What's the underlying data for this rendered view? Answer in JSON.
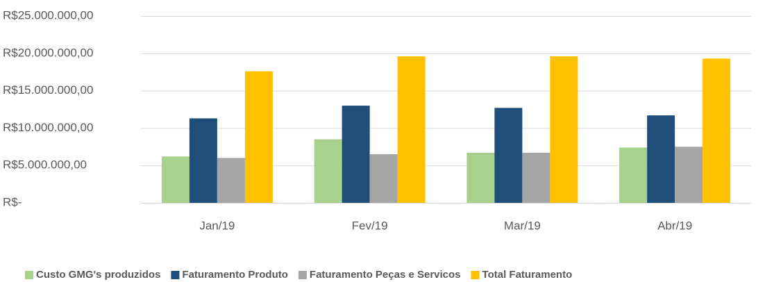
{
  "chart_data": {
    "type": "bar",
    "categories": [
      "Jan/19",
      "Fev/19",
      "Mar/19",
      "Abr/19"
    ],
    "series": [
      {
        "name": "Custo GMG's produzidos",
        "color": "#a9d18e",
        "values": [
          6200000,
          8500000,
          6700000,
          7400000
        ]
      },
      {
        "name": "Faturamento Produto",
        "color": "#1f4e79",
        "values": [
          11300000,
          13000000,
          12700000,
          11700000
        ]
      },
      {
        "name": "Faturamento Peças e Servicos",
        "color": "#a5a5a5",
        "values": [
          6000000,
          6500000,
          6700000,
          7500000
        ]
      },
      {
        "name": "Total Faturamento",
        "color": "#ffc000",
        "values": [
          17600000,
          19600000,
          19600000,
          19300000
        ]
      }
    ],
    "ylim": [
      0,
      25000000
    ],
    "yticks": [
      {
        "value": 0,
        "label": "R$-"
      },
      {
        "value": 5000000,
        "label": "R$5.000.000,00"
      },
      {
        "value": 10000000,
        "label": "R$10.000.000,00"
      },
      {
        "value": 15000000,
        "label": "R$15.000.000,00"
      },
      {
        "value": 20000000,
        "label": "R$20.000.000,00"
      },
      {
        "value": 25000000,
        "label": "R$25.000.000,00"
      }
    ],
    "grid": true,
    "legend": "bottom"
  }
}
